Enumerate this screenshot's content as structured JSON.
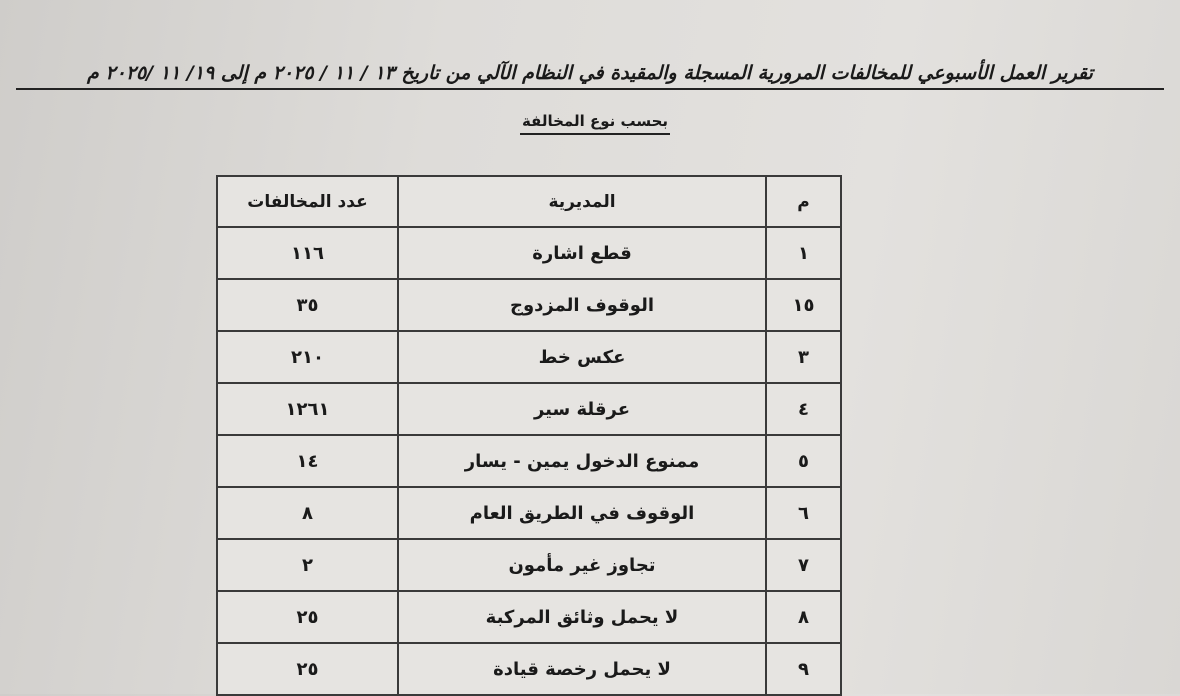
{
  "header": {
    "title": "تقرير العمل الأسبوعي للمخالفات المرورية المسجلة والمقيدة في النظام الآلي من تاريخ ١٣ / ١١ / ٢٠٢٥ م إلى ١٩/ ١١ /٢٠٢٥ م",
    "subtitle": "بحسب نوع المخالفة"
  },
  "table": {
    "columns": [
      "م",
      "المديرية",
      "عدد المخالفات"
    ],
    "rows": [
      [
        "١",
        "قطع اشارة",
        "١١٦"
      ],
      [
        "١٥",
        "الوقوف المزدوج",
        "٣٥"
      ],
      [
        "٣",
        "عكس خط",
        "٢١٠"
      ],
      [
        "٤",
        "عرقلة سير",
        "١٢٦١"
      ],
      [
        "٥",
        "ممنوع الدخول يمين - يسار",
        "١٤"
      ],
      [
        "٦",
        "الوقوف في الطريق العام",
        "٨"
      ],
      [
        "٧",
        "تجاوز غير مأمون",
        "٢"
      ],
      [
        "٨",
        "لا يحمل وثائق المركبة",
        "٢٥"
      ],
      [
        "٩",
        "لا يحمل رخصة قيادة",
        "٢٥"
      ]
    ]
  }
}
